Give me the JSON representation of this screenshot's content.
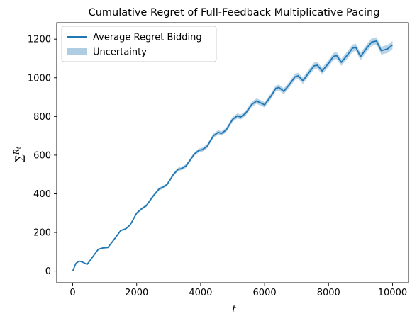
{
  "chart_data": {
    "type": "line",
    "title": "Cumulative Regret of Full-Feedback Multiplicative Pacing",
    "xlabel": "t",
    "ylabel": "∑R_t",
    "ylabel_main": "∑",
    "ylabel_sub": "R",
    "ylabel_subsub": "t",
    "xlim": [
      -500,
      10500
    ],
    "ylim": [
      -60,
      1285
    ],
    "xticks": [
      0,
      2000,
      4000,
      6000,
      8000,
      10000
    ],
    "xtick_labels": [
      "0",
      "2000",
      "4000",
      "6000",
      "8000",
      "10000"
    ],
    "yticks": [
      0,
      200,
      400,
      600,
      800,
      1000,
      1200
    ],
    "ytick_labels": [
      "0",
      "200",
      "400",
      "600",
      "800",
      "1000",
      "1200"
    ],
    "grid": false,
    "legend_position": "top-left",
    "legend": [
      {
        "label": "Average Regret Bidding",
        "kind": "line",
        "color": "#1f77b4"
      },
      {
        "label": "Uncertainty",
        "kind": "band",
        "color": "#aecde3"
      }
    ],
    "series": [
      {
        "name": "Average Regret Bidding",
        "color": "#1f77b4",
        "band_color": "#aecde3",
        "x": [
          0,
          100,
          200,
          300,
          450,
          600,
          800,
          950,
          1100,
          1300,
          1500,
          1650,
          1800,
          2000,
          2150,
          2300,
          2500,
          2700,
          2800,
          2950,
          3150,
          3300,
          3400,
          3550,
          3800,
          3950,
          4050,
          4200,
          4400,
          4550,
          4650,
          4800,
          5000,
          5150,
          5250,
          5400,
          5600,
          5750,
          5850,
          6000,
          6200,
          6350,
          6450,
          6600,
          6800,
          6950,
          7050,
          7200,
          7400,
          7550,
          7650,
          7800,
          8000,
          8150,
          8250,
          8400,
          8600,
          8750,
          8850,
          9000,
          9200,
          9350,
          9500,
          9650,
          9850,
          10000
        ],
        "y": [
          0,
          40,
          52,
          47,
          35,
          68,
          113,
          120,
          122,
          165,
          210,
          218,
          240,
          300,
          322,
          338,
          385,
          425,
          432,
          448,
          500,
          527,
          530,
          545,
          605,
          625,
          628,
          645,
          700,
          718,
          712,
          730,
          785,
          803,
          797,
          815,
          862,
          880,
          872,
          860,
          905,
          945,
          950,
          930,
          970,
          1005,
          1010,
          985,
          1030,
          1062,
          1065,
          1035,
          1075,
          1110,
          1115,
          1080,
          1120,
          1153,
          1158,
          1110,
          1155,
          1185,
          1190,
          1140,
          1150,
          1170
        ],
        "band": [
          0,
          2,
          3,
          3,
          3,
          3,
          4,
          4,
          4,
          5,
          5,
          5,
          6,
          7,
          7,
          7,
          8,
          8,
          8,
          8,
          9,
          9,
          9,
          10,
          10,
          10,
          11,
          11,
          12,
          12,
          12,
          12,
          13,
          13,
          13,
          13,
          14,
          14,
          14,
          14,
          15,
          15,
          15,
          15,
          16,
          16,
          16,
          16,
          17,
          17,
          17,
          17,
          18,
          18,
          18,
          18,
          19,
          19,
          19,
          19,
          20,
          20,
          20,
          20,
          21,
          21
        ]
      }
    ]
  }
}
